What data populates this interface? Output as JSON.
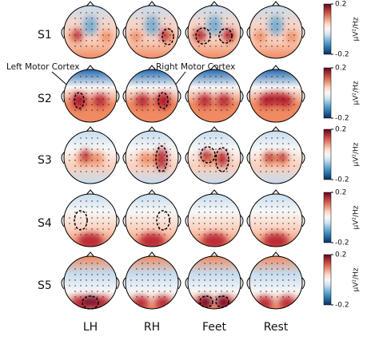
{
  "chart_data": {
    "type": "topomap",
    "rows": [
      "S1",
      "S2",
      "S3",
      "S4",
      "S5"
    ],
    "columns": [
      "LH",
      "RH",
      "Feet",
      "Rest"
    ],
    "colorbar_label": "μV²/Hz",
    "clim": [
      -0.2,
      0.2
    ],
    "cticks": [
      0.2,
      -0.2
    ],
    "annotations": [
      "Left Motor Cortex",
      "Right Motor Cortex"
    ]
  }
}
